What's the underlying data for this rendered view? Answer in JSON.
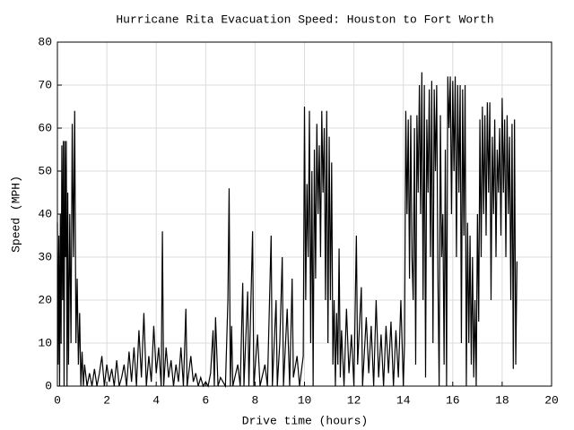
{
  "chart_data": {
    "type": "line",
    "title": "Hurricane Rita Evacuation Speed: Houston to Fort Worth",
    "x_label": "Drive time (hours)",
    "y_label": "Speed (MPH)",
    "color": "#000000",
    "grid": true,
    "xlim": [
      0,
      20
    ],
    "xticks": [
      0,
      2,
      4,
      6,
      8,
      10,
      12,
      14,
      16,
      18,
      20
    ],
    "ylim": [
      0,
      80
    ],
    "yticks": [
      0,
      10,
      20,
      30,
      40,
      50,
      60,
      70,
      80
    ],
    "x": [
      0,
      0.03,
      0.06,
      0.09,
      0.12,
      0.15,
      0.18,
      0.21,
      0.24,
      0.27,
      0.3,
      0.33,
      0.36,
      0.39,
      0.42,
      0.45,
      0.5,
      0.55,
      0.6,
      0.65,
      0.7,
      0.75,
      0.8,
      0.85,
      0.9,
      0.95,
      1.0,
      1.05,
      1.1,
      1.2,
      1.3,
      1.4,
      1.5,
      1.6,
      1.7,
      1.8,
      1.9,
      2.0,
      2.1,
      2.2,
      2.3,
      2.4,
      2.5,
      2.6,
      2.7,
      2.8,
      2.9,
      3.0,
      3.1,
      3.2,
      3.3,
      3.4,
      3.5,
      3.6,
      3.7,
      3.8,
      3.9,
      4.0,
      4.1,
      4.2,
      4.25,
      4.3,
      4.4,
      4.5,
      4.6,
      4.7,
      4.8,
      4.9,
      5.0,
      5.1,
      5.2,
      5.25,
      5.4,
      5.5,
      5.6,
      5.7,
      5.8,
      5.9,
      6.0,
      6.1,
      6.2,
      6.3,
      6.35,
      6.4,
      6.5,
      6.6,
      6.8,
      6.9,
      6.95,
      7.0,
      7.05,
      7.1,
      7.3,
      7.4,
      7.5,
      7.55,
      7.7,
      7.75,
      7.9,
      7.95,
      8.1,
      8.2,
      8.4,
      8.5,
      8.65,
      8.7,
      8.85,
      8.9,
      9.0,
      9.1,
      9.15,
      9.3,
      9.4,
      9.5,
      9.55,
      9.7,
      9.8,
      9.95,
      10.0,
      10.05,
      10.1,
      10.15,
      10.2,
      10.25,
      10.3,
      10.35,
      10.4,
      10.45,
      10.5,
      10.55,
      10.6,
      10.65,
      10.7,
      10.75,
      10.8,
      10.85,
      10.9,
      10.95,
      11.0,
      11.05,
      11.1,
      11.15,
      11.2,
      11.25,
      11.3,
      11.35,
      11.4,
      11.45,
      11.5,
      11.6,
      11.7,
      11.8,
      11.9,
      12.0,
      12.1,
      12.15,
      12.3,
      12.35,
      12.5,
      12.6,
      12.7,
      12.8,
      12.9,
      13.0,
      13.1,
      13.2,
      13.3,
      13.4,
      13.5,
      13.6,
      13.7,
      13.8,
      13.9,
      14.0,
      14.05,
      14.1,
      14.15,
      14.2,
      14.25,
      14.3,
      14.35,
      14.4,
      14.45,
      14.5,
      14.55,
      14.6,
      14.65,
      14.7,
      14.75,
      14.8,
      14.85,
      14.9,
      14.95,
      15.0,
      15.05,
      15.1,
      15.15,
      15.2,
      15.25,
      15.3,
      15.35,
      15.4,
      15.45,
      15.5,
      15.55,
      15.6,
      15.65,
      15.7,
      15.75,
      15.8,
      15.85,
      15.9,
      15.95,
      16.0,
      16.05,
      16.1,
      16.15,
      16.2,
      16.25,
      16.3,
      16.35,
      16.4,
      16.45,
      16.5,
      16.55,
      16.6,
      16.65,
      16.7,
      16.75,
      16.8,
      16.85,
      16.9,
      16.95,
      17.0,
      17.05,
      17.1,
      17.15,
      17.2,
      17.25,
      17.3,
      17.35,
      17.4,
      17.45,
      17.5,
      17.55,
      17.6,
      17.65,
      17.7,
      17.75,
      17.8,
      17.85,
      17.9,
      17.95,
      18.0,
      18.05,
      18.1,
      18.15,
      18.2,
      18.25,
      18.3,
      18.35,
      18.4,
      18.45,
      18.5,
      18.55,
      18.6
    ],
    "values": [
      38,
      5,
      35,
      0,
      40,
      10,
      56,
      20,
      57,
      0,
      57,
      30,
      57,
      0,
      45,
      5,
      40,
      10,
      61,
      30,
      64,
      10,
      25,
      5,
      17,
      0,
      8,
      0,
      5,
      0,
      3,
      0,
      4,
      0,
      3,
      7,
      0,
      5,
      1,
      4,
      0,
      6,
      0,
      2,
      5,
      0,
      8,
      1,
      9,
      0,
      13,
      2,
      17,
      0,
      7,
      1,
      14,
      3,
      9,
      0,
      36,
      0,
      9,
      2,
      6,
      0,
      5,
      1,
      9,
      0,
      18,
      0,
      7,
      1,
      3,
      0,
      2,
      0,
      1,
      0,
      3,
      13,
      0,
      16,
      0,
      2,
      0,
      20,
      46,
      0,
      14,
      0,
      5,
      0,
      24,
      0,
      22,
      0,
      36,
      0,
      12,
      0,
      5,
      0,
      35,
      0,
      20,
      0,
      10,
      30,
      0,
      18,
      0,
      25,
      2,
      7,
      0,
      7,
      65,
      20,
      47,
      30,
      64,
      10,
      50,
      0,
      55,
      25,
      61,
      40,
      56,
      30,
      64,
      45,
      60,
      20,
      64,
      10,
      58,
      20,
      52,
      5,
      20,
      0,
      17,
      5,
      32,
      2,
      13,
      0,
      18,
      3,
      12,
      0,
      35,
      5,
      23,
      0,
      16,
      3,
      14,
      0,
      20,
      2,
      12,
      0,
      14,
      3,
      15,
      0,
      13,
      2,
      20,
      0,
      10,
      64,
      40,
      62,
      25,
      63,
      30,
      20,
      60,
      5,
      63,
      45,
      70,
      40,
      73,
      20,
      70,
      2,
      62,
      45,
      69,
      30,
      71,
      10,
      69,
      50,
      70,
      25,
      0,
      63,
      30,
      40,
      5,
      55,
      0,
      72,
      60,
      72,
      40,
      71,
      50,
      72,
      30,
      70,
      45,
      70,
      10,
      69,
      35,
      70,
      0,
      38,
      10,
      35,
      5,
      30,
      2,
      20,
      0,
      40,
      15,
      62,
      30,
      65,
      40,
      63,
      35,
      66,
      45,
      66,
      20,
      58,
      40,
      62,
      30,
      55,
      45,
      60,
      35,
      67,
      45,
      62,
      30,
      63,
      40,
      58,
      20,
      61,
      4,
      62,
      5,
      29
    ]
  }
}
